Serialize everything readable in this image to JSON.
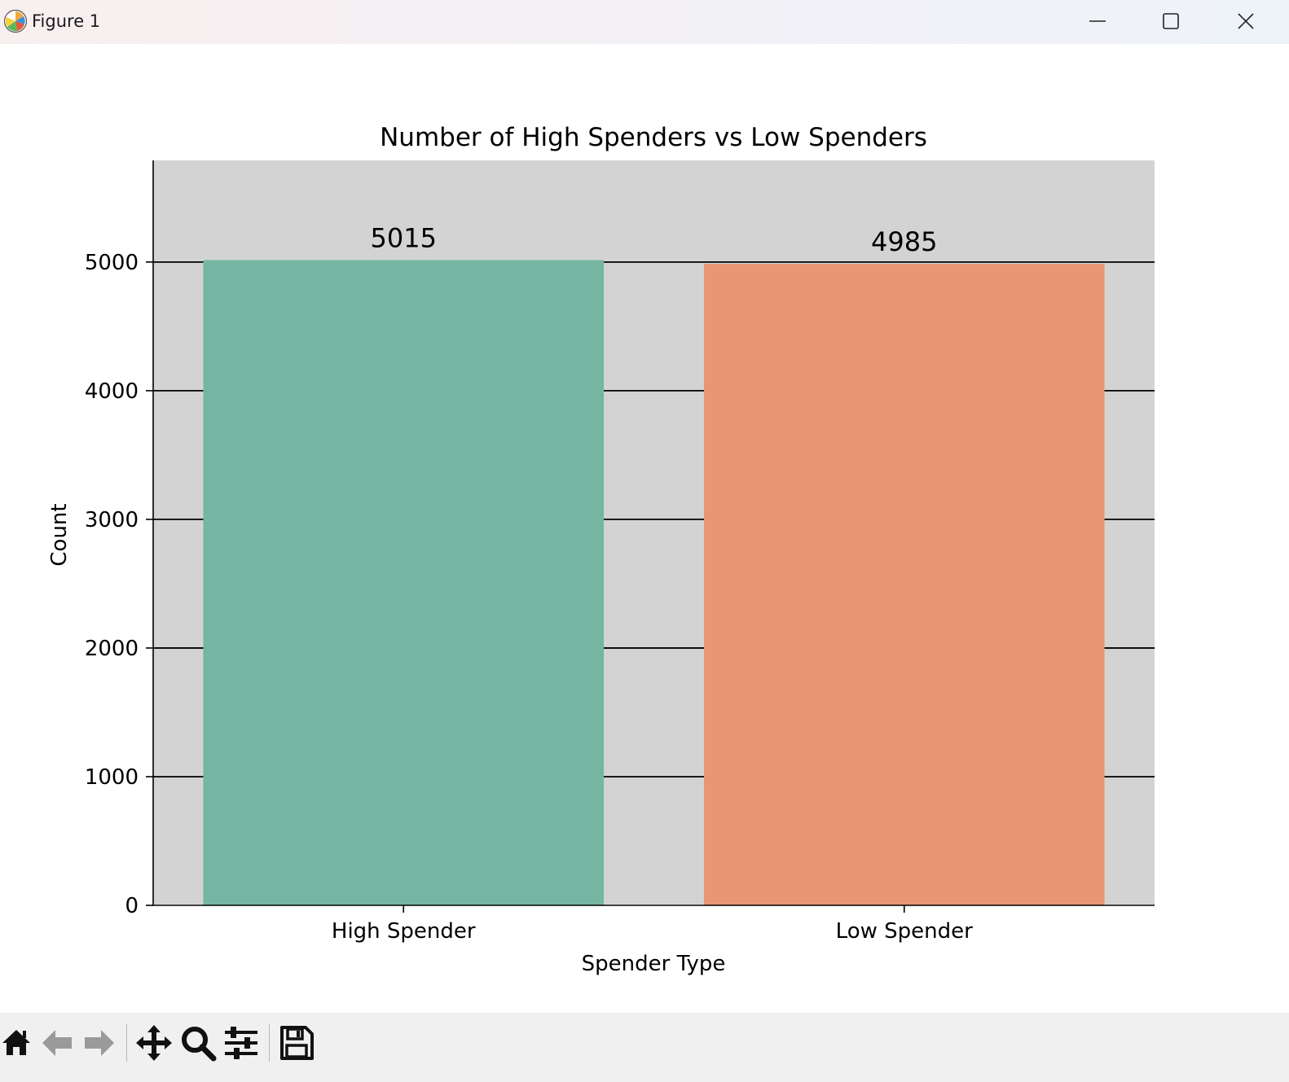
{
  "window": {
    "title": "Figure 1",
    "icon": "matplotlib-logo-icon",
    "controls": [
      "minimize-icon",
      "maximize-icon",
      "close-icon"
    ]
  },
  "toolbar": {
    "tools": [
      "home-icon",
      "back-arrow-icon",
      "forward-arrow-icon",
      "pan-icon",
      "zoom-icon",
      "configure-subplots-icon",
      "save-icon"
    ]
  },
  "chart_data": {
    "type": "bar",
    "title": "Number of High Spenders vs Low Spenders",
    "xlabel": "Spender Type",
    "ylabel": "Count",
    "categories": [
      "High Spender",
      "Low Spender"
    ],
    "values": [
      5015,
      4985
    ],
    "data_labels": [
      "5015",
      "4985"
    ],
    "colors": [
      "#74b6a1",
      "#e99675"
    ],
    "background_color": "#d3d3d3",
    "ylim": [
      0,
      5790
    ],
    "yticks": [
      0,
      1000,
      2000,
      3000,
      4000,
      5000
    ],
    "ytick_labels": [
      "0",
      "1000",
      "2000",
      "3000",
      "4000",
      "5000"
    ],
    "grid": "horizontal",
    "grid_color": "#000000"
  }
}
